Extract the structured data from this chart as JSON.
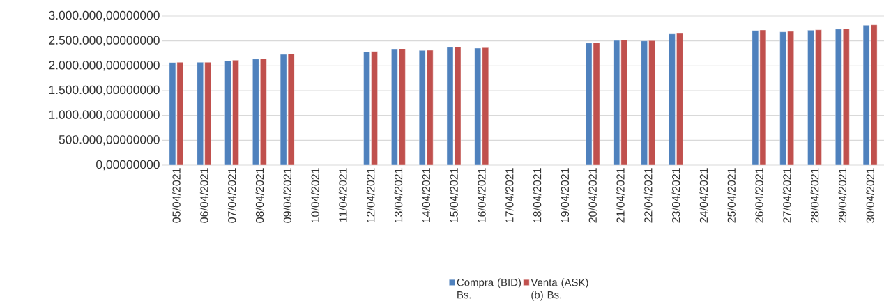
{
  "chart_data": {
    "type": "bar",
    "categories": [
      "05/04/2021",
      "06/04/2021",
      "07/04/2021",
      "08/04/2021",
      "09/04/2021",
      "10/04/2021",
      "11/04/2021",
      "12/04/2021",
      "13/04/2021",
      "14/04/2021",
      "15/04/2021",
      "16/04/2021",
      "17/04/2021",
      "18/04/2021",
      "19/04/2021",
      "20/04/2021",
      "21/04/2021",
      "22/04/2021",
      "23/04/2021",
      "24/04/2021",
      "25/04/2021",
      "26/04/2021",
      "27/04/2021",
      "28/04/2021",
      "29/04/2021",
      "30/04/2021"
    ],
    "series": [
      {
        "name": "Compra (BID) Bs.",
        "color": "#4f81bd",
        "values": [
          2065000,
          2070000,
          2103000,
          2136000,
          2229000,
          null,
          null,
          2285000,
          2327000,
          2308000,
          2374000,
          2355000,
          null,
          null,
          null,
          2458000,
          2509000,
          2500000,
          2640000,
          null,
          null,
          2710000,
          2682000,
          2715000,
          2738000,
          2813000
        ]
      },
      {
        "name": "Venta (ASK) (b) Bs.",
        "color": "#c0504d",
        "values": [
          2070000,
          2070000,
          2112000,
          2145000,
          2238000,
          null,
          null,
          2290000,
          2336000,
          2313000,
          2383000,
          2364000,
          null,
          null,
          null,
          2467000,
          2519000,
          2505000,
          2650000,
          null,
          null,
          2720000,
          2692000,
          2724000,
          2748000,
          2822000
        ]
      }
    ],
    "ylim": [
      0,
      3000000
    ],
    "yticks": [
      {
        "value": 0,
        "label": "0,00000000"
      },
      {
        "value": 500000,
        "label": "500.000,00000000"
      },
      {
        "value": 1000000,
        "label": "1.000.000,00000000"
      },
      {
        "value": 1500000,
        "label": "1.500.000,00000000"
      },
      {
        "value": 2000000,
        "label": "2.000.000,00000000"
      },
      {
        "value": 2500000,
        "label": "2.500.000,00000000"
      },
      {
        "value": 3000000,
        "label": "3.000.000,00000000"
      }
    ],
    "grid": "y",
    "legend": "bottom"
  }
}
